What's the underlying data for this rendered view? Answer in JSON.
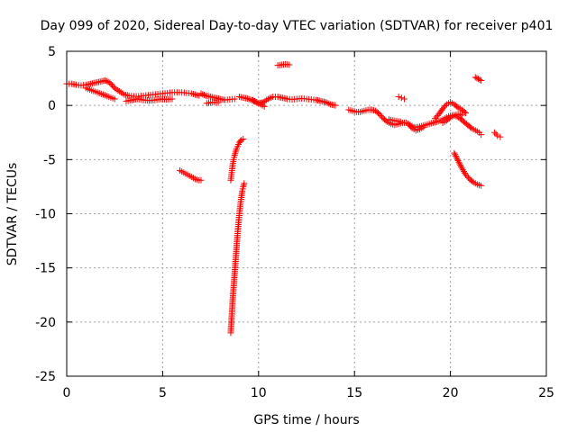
{
  "chart_data": {
    "type": "scatter",
    "title": "Day 099 of 2020, Sidereal Day-to-day VTEC variation (SDTVAR) for receiver p401",
    "xlabel": "GPS time / hours",
    "ylabel": "SDTVAR / TECUs",
    "xlim": [
      0,
      25
    ],
    "ylim": [
      -25,
      5
    ],
    "xticks": [
      0,
      5,
      10,
      15,
      20,
      25
    ],
    "yticks": [
      5,
      0,
      -5,
      -10,
      -15,
      -20,
      -25
    ],
    "grid": true,
    "marker": "+",
    "marker_color": "#ff0000",
    "series": [
      {
        "name": "SDTVAR",
        "segments": [
          {
            "x": [
              0.0,
              0.25,
              0.5,
              0.75,
              1.0,
              1.25,
              1.5,
              1.75,
              2.0,
              2.25,
              2.5,
              2.75,
              3.0,
              3.25,
              3.5,
              3.75,
              4.0,
              4.25,
              4.5,
              4.75,
              5.0,
              5.25,
              5.5,
              5.75,
              6.0,
              6.25,
              6.5,
              6.9
            ],
            "y": [
              2.0,
              2.0,
              1.9,
              1.85,
              1.9,
              2.0,
              2.1,
              2.2,
              2.3,
              2.1,
              1.6,
              1.3,
              1.0,
              0.9,
              0.85,
              0.85,
              0.9,
              0.95,
              1.0,
              1.05,
              1.1,
              1.15,
              1.2,
              1.2,
              1.2,
              1.15,
              1.1,
              0.9
            ]
          },
          {
            "x": [
              1.0,
              1.3,
              1.6,
              1.9,
              2.2,
              2.5
            ],
            "y": [
              1.6,
              1.4,
              1.2,
              1.0,
              0.8,
              0.6
            ]
          },
          {
            "x": [
              3.1,
              3.4,
              3.7,
              4.0,
              4.3,
              4.6,
              4.9,
              5.2,
              5.5
            ],
            "y": [
              0.4,
              0.5,
              0.6,
              0.5,
              0.45,
              0.5,
              0.6,
              0.55,
              0.6
            ]
          },
          {
            "x": [
              7.0,
              7.25,
              7.5,
              7.75,
              8.0,
              8.25,
              8.5,
              8.75
            ],
            "y": [
              1.1,
              0.9,
              0.8,
              0.7,
              0.6,
              0.5,
              0.55,
              0.6
            ]
          },
          {
            "x": [
              7.3,
              7.6,
              7.9
            ],
            "y": [
              0.2,
              0.3,
              0.25
            ]
          },
          {
            "x": [
              9.0,
              9.25,
              9.5,
              9.75,
              10.0,
              10.25,
              10.5,
              10.75,
              11.0,
              11.25,
              11.5,
              11.75,
              12.0,
              12.25,
              12.5,
              12.75,
              13.0,
              13.25,
              13.5,
              13.75,
              14.0
            ],
            "y": [
              0.8,
              0.7,
              0.6,
              0.4,
              0.2,
              0.3,
              0.6,
              0.8,
              0.8,
              0.7,
              0.6,
              0.55,
              0.6,
              0.65,
              0.6,
              0.55,
              0.5,
              0.4,
              0.3,
              0.1,
              0.0
            ]
          },
          {
            "x": [
              9.7,
              9.9,
              10.1,
              10.3
            ],
            "y": [
              0.5,
              0.3,
              0.1,
              -0.1
            ]
          },
          {
            "x": [
              11.0,
              11.2,
              11.4,
              11.6
            ],
            "y": [
              3.7,
              3.75,
              3.8,
              3.75
            ]
          },
          {
            "x": [
              14.7,
              14.9,
              15.1,
              15.3,
              15.5,
              15.7,
              15.9,
              16.1,
              16.3,
              16.5,
              16.7,
              16.9,
              17.1,
              17.3,
              17.5,
              17.7,
              17.9,
              18.1,
              18.3,
              18.5,
              18.7,
              18.9,
              19.1,
              19.3,
              19.5,
              19.7,
              19.9,
              20.1,
              20.3,
              20.5,
              20.7,
              20.9,
              21.1,
              21.3,
              21.5,
              21.6
            ],
            "y": [
              -0.4,
              -0.5,
              -0.6,
              -0.6,
              -0.5,
              -0.4,
              -0.4,
              -0.5,
              -0.8,
              -1.2,
              -1.5,
              -1.7,
              -1.8,
              -1.7,
              -1.6,
              -1.6,
              -1.8,
              -2.0,
              -2.0,
              -1.9,
              -1.8,
              -1.7,
              -1.6,
              -1.5,
              -1.4,
              -1.2,
              -1.0,
              -0.9,
              -1.0,
              -1.2,
              -1.5,
              -1.8,
              -2.1,
              -2.3,
              -2.5,
              -2.7
            ]
          },
          {
            "x": [
              16.8,
              17.1,
              17.4
            ],
            "y": [
              -1.3,
              -1.4,
              -1.5
            ]
          },
          {
            "x": [
              17.8,
              18.0,
              18.2,
              18.4,
              18.6
            ],
            "y": [
              -1.7,
              -2.1,
              -2.3,
              -2.2,
              -2.0
            ]
          },
          {
            "x": [
              19.2,
              19.4,
              19.6,
              19.8,
              20.0,
              20.2,
              20.4,
              20.6,
              20.8
            ],
            "y": [
              -1.2,
              -0.8,
              -0.3,
              0.1,
              0.3,
              0.1,
              -0.2,
              -0.4,
              -0.7
            ]
          },
          {
            "x": [
              19.6,
              19.8,
              20.0,
              20.2,
              20.4,
              20.6
            ],
            "y": [
              -1.6,
              -1.4,
              -1.1,
              -0.9,
              -0.8,
              -0.9
            ]
          },
          {
            "x": [
              17.3,
              17.45,
              17.6
            ],
            "y": [
              0.8,
              0.7,
              0.6
            ]
          },
          {
            "x": [
              21.3,
              21.45,
              21.6
            ],
            "y": [
              2.6,
              2.45,
              2.3
            ]
          },
          {
            "x": [
              22.3,
              22.45,
              22.6
            ],
            "y": [
              -2.5,
              -2.8,
              -2.9
            ]
          },
          {
            "x": [
              5.9,
              6.1,
              6.3,
              6.5,
              6.7,
              6.9,
              7.0
            ],
            "y": [
              -6.0,
              -6.2,
              -6.4,
              -6.6,
              -6.8,
              -6.9,
              -6.9
            ]
          },
          {
            "x": [
              8.55,
              8.6,
              8.65,
              8.7,
              8.75,
              8.8,
              8.85,
              8.9,
              8.95,
              9.0,
              9.05,
              9.1,
              9.2
            ],
            "y": [
              -6.9,
              -6.2,
              -5.5,
              -5.0,
              -4.6,
              -4.3,
              -4.0,
              -3.8,
              -3.6,
              -3.4,
              -3.3,
              -3.2,
              -3.1
            ]
          },
          {
            "x": [
              8.55,
              8.6,
              8.65,
              8.7,
              8.75,
              8.8,
              8.85,
              8.9,
              8.95,
              9.0,
              9.05,
              9.1,
              9.15,
              9.2,
              9.25
            ],
            "y": [
              -21.0,
              -19.5,
              -18.0,
              -16.8,
              -15.6,
              -14.4,
              -13.2,
              -12.0,
              -11.0,
              -10.0,
              -9.2,
              -8.5,
              -7.9,
              -7.5,
              -7.2
            ]
          },
          {
            "x": [
              20.2,
              20.4,
              20.6,
              20.8,
              21.0,
              21.2,
              21.4,
              21.6
            ],
            "y": [
              -4.4,
              -5.1,
              -5.8,
              -6.4,
              -6.8,
              -7.1,
              -7.3,
              -7.4
            ]
          }
        ]
      }
    ]
  }
}
